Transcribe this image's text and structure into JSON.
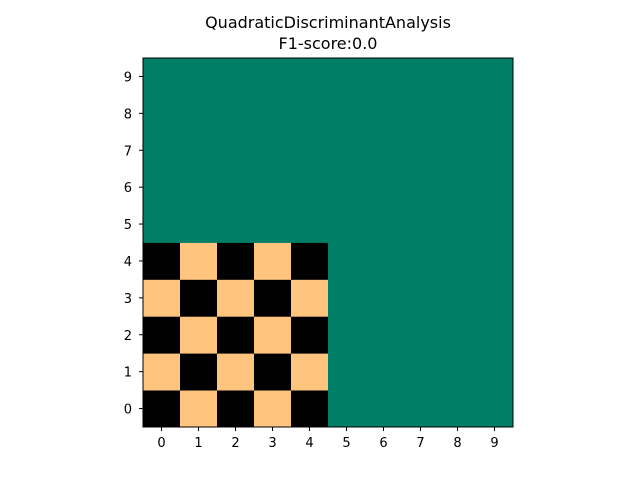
{
  "chart_data": {
    "type": "heatmap",
    "title": "QuadraticDiscriminantAnalysis",
    "subtitle": "F1-score:0.0",
    "xlabel": "",
    "ylabel": "",
    "x_ticks": [
      "0",
      "1",
      "2",
      "3",
      "4",
      "5",
      "6",
      "7",
      "8",
      "9"
    ],
    "y_ticks": [
      "0",
      "1",
      "2",
      "3",
      "4",
      "5",
      "6",
      "7",
      "8",
      "9"
    ],
    "xlim": [
      -0.5,
      9.5
    ],
    "ylim": [
      -0.5,
      9.5
    ],
    "grid": false,
    "legend": "none",
    "colors": {
      "background_class": "#007f66",
      "black_class": "#000000",
      "peach_class": "#ffc57f"
    },
    "cells_note_rows_bottom_to_top": "value 0=black, 1=peach, 2=teal",
    "cells": [
      [
        0,
        1,
        0,
        1,
        0,
        2,
        2,
        2,
        2,
        2
      ],
      [
        1,
        0,
        1,
        0,
        1,
        2,
        2,
        2,
        2,
        2
      ],
      [
        0,
        1,
        0,
        1,
        0,
        2,
        2,
        2,
        2,
        2
      ],
      [
        1,
        0,
        1,
        0,
        1,
        2,
        2,
        2,
        2,
        2
      ],
      [
        0,
        1,
        0,
        1,
        0,
        2,
        2,
        2,
        2,
        2
      ],
      [
        2,
        2,
        2,
        2,
        2,
        2,
        2,
        2,
        2,
        2
      ],
      [
        2,
        2,
        2,
        2,
        2,
        2,
        2,
        2,
        2,
        2
      ],
      [
        2,
        2,
        2,
        2,
        2,
        2,
        2,
        2,
        2,
        2
      ],
      [
        2,
        2,
        2,
        2,
        2,
        2,
        2,
        2,
        2,
        2
      ],
      [
        2,
        2,
        2,
        2,
        2,
        2,
        2,
        2,
        2,
        2
      ]
    ]
  }
}
